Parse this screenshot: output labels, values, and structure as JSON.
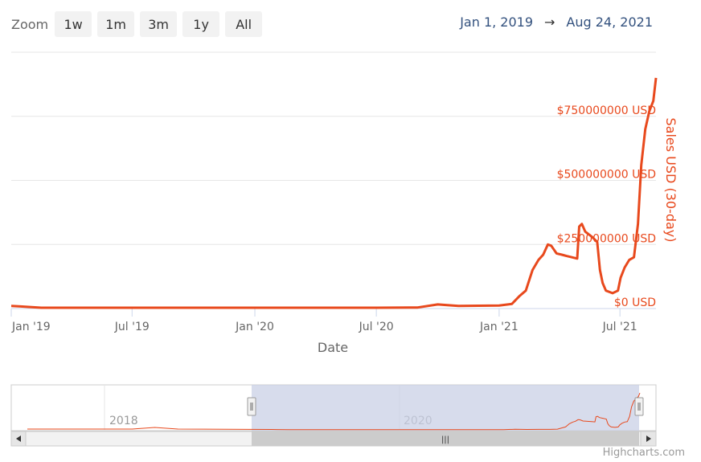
{
  "zoom": {
    "label": "Zoom",
    "buttons": [
      "1w",
      "1m",
      "3m",
      "1y",
      "All"
    ]
  },
  "range": {
    "from": "Jan 1, 2019",
    "arrow": "→",
    "to": "Aug 24, 2021"
  },
  "credit": "Highcharts.com",
  "colors": {
    "series": "#e8491d",
    "axis_text": "#666666",
    "navigator_mask": "#c9d0e6"
  },
  "chart_data": {
    "type": "line",
    "title": "",
    "xlabel": "Date",
    "ylabel": "Sales USD (30-day)",
    "ylim": [
      0,
      1000000000
    ],
    "xlim": [
      "2019-01-01",
      "2021-08-24"
    ],
    "x_ticks": [
      "Jan '19",
      "Jul '19",
      "Jan '20",
      "Jul '20",
      "Jan '21",
      "Jul '21"
    ],
    "y_ticks": [
      "$0 USD",
      "$250000000 USD",
      "$500000000 USD",
      "$750000000 USD"
    ],
    "y_tick_values": [
      0,
      250000000,
      500000000,
      750000000
    ],
    "grid": true,
    "series": [
      {
        "name": "",
        "x": [
          "2019-01-01",
          "2019-01-15",
          "2019-02-15",
          "2019-04-01",
          "2019-07-01",
          "2019-10-01",
          "2020-01-01",
          "2020-04-01",
          "2020-07-01",
          "2020-09-01",
          "2020-10-01",
          "2020-11-01",
          "2020-12-01",
          "2021-01-01",
          "2021-01-20",
          "2021-02-01",
          "2021-02-10",
          "2021-02-20",
          "2021-03-01",
          "2021-03-08",
          "2021-03-15",
          "2021-03-20",
          "2021-03-28",
          "2021-04-05",
          "2021-04-12",
          "2021-04-20",
          "2021-04-28",
          "2021-05-01",
          "2021-05-05",
          "2021-05-10",
          "2021-05-20",
          "2021-05-28",
          "2021-06-01",
          "2021-06-05",
          "2021-06-10",
          "2021-06-20",
          "2021-06-28",
          "2021-07-02",
          "2021-07-08",
          "2021-07-15",
          "2021-07-22",
          "2021-07-28",
          "2021-08-02",
          "2021-08-08",
          "2021-08-14",
          "2021-08-20",
          "2021-08-24"
        ],
        "y": [
          10000000,
          8000000,
          3000000,
          3000000,
          3000000,
          3000000,
          3000000,
          3000000,
          3000000,
          4000000,
          16000000,
          10000000,
          11000000,
          12000000,
          18000000,
          50000000,
          70000000,
          150000000,
          190000000,
          210000000,
          250000000,
          245000000,
          215000000,
          210000000,
          205000000,
          200000000,
          195000000,
          320000000,
          330000000,
          300000000,
          280000000,
          260000000,
          150000000,
          100000000,
          70000000,
          60000000,
          70000000,
          120000000,
          160000000,
          190000000,
          200000000,
          330000000,
          560000000,
          700000000,
          770000000,
          810000000,
          900000000
        ]
      }
    ]
  },
  "navigator": {
    "labels": [
      "2018",
      "2020"
    ],
    "scrollbar_grip": "|||"
  }
}
